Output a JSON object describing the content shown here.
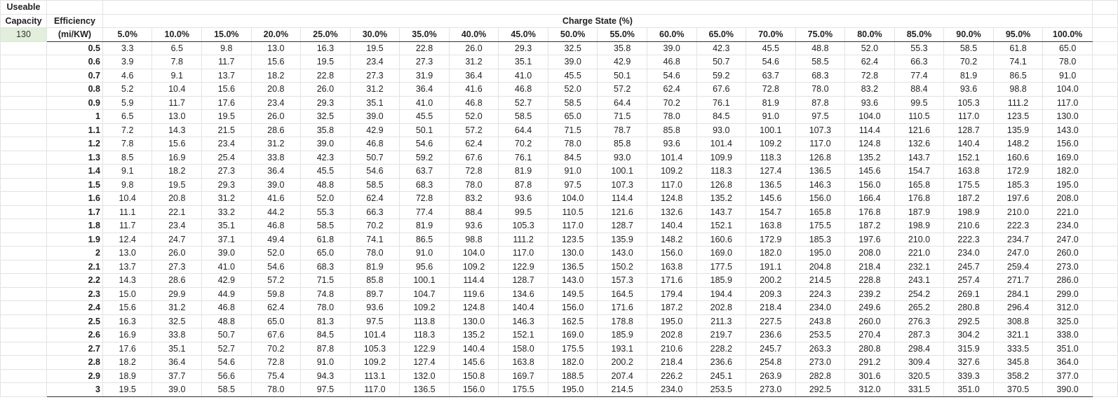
{
  "header": {
    "useable": "Useable",
    "capacity": "Capacity",
    "capacity_value": "130",
    "efficiency": "Efficiency",
    "efficiency_unit": "(mi/KW)",
    "charge_state": "Charge State (%)"
  },
  "table": {
    "columns": [
      "5.0%",
      "10.0%",
      "15.0%",
      "20.0%",
      "25.0%",
      "30.0%",
      "35.0%",
      "40.0%",
      "45.0%",
      "50.0%",
      "55.0%",
      "60.0%",
      "65.0%",
      "70.0%",
      "75.0%",
      "80.0%",
      "85.0%",
      "90.0%",
      "95.0%",
      "100.0%"
    ],
    "rows": [
      {
        "label": "0.5",
        "values": [
          "3.3",
          "6.5",
          "9.8",
          "13.0",
          "16.3",
          "19.5",
          "22.8",
          "26.0",
          "29.3",
          "32.5",
          "35.8",
          "39.0",
          "42.3",
          "45.5",
          "48.8",
          "52.0",
          "55.3",
          "58.5",
          "61.8",
          "65.0"
        ]
      },
      {
        "label": "0.6",
        "values": [
          "3.9",
          "7.8",
          "11.7",
          "15.6",
          "19.5",
          "23.4",
          "27.3",
          "31.2",
          "35.1",
          "39.0",
          "42.9",
          "46.8",
          "50.7",
          "54.6",
          "58.5",
          "62.4",
          "66.3",
          "70.2",
          "74.1",
          "78.0"
        ]
      },
      {
        "label": "0.7",
        "values": [
          "4.6",
          "9.1",
          "13.7",
          "18.2",
          "22.8",
          "27.3",
          "31.9",
          "36.4",
          "41.0",
          "45.5",
          "50.1",
          "54.6",
          "59.2",
          "63.7",
          "68.3",
          "72.8",
          "77.4",
          "81.9",
          "86.5",
          "91.0"
        ]
      },
      {
        "label": "0.8",
        "values": [
          "5.2",
          "10.4",
          "15.6",
          "20.8",
          "26.0",
          "31.2",
          "36.4",
          "41.6",
          "46.8",
          "52.0",
          "57.2",
          "62.4",
          "67.6",
          "72.8",
          "78.0",
          "83.2",
          "88.4",
          "93.6",
          "98.8",
          "104.0"
        ]
      },
      {
        "label": "0.9",
        "values": [
          "5.9",
          "11.7",
          "17.6",
          "23.4",
          "29.3",
          "35.1",
          "41.0",
          "46.8",
          "52.7",
          "58.5",
          "64.4",
          "70.2",
          "76.1",
          "81.9",
          "87.8",
          "93.6",
          "99.5",
          "105.3",
          "111.2",
          "117.0"
        ]
      },
      {
        "label": "1",
        "values": [
          "6.5",
          "13.0",
          "19.5",
          "26.0",
          "32.5",
          "39.0",
          "45.5",
          "52.0",
          "58.5",
          "65.0",
          "71.5",
          "78.0",
          "84.5",
          "91.0",
          "97.5",
          "104.0",
          "110.5",
          "117.0",
          "123.5",
          "130.0"
        ]
      },
      {
        "label": "1.1",
        "values": [
          "7.2",
          "14.3",
          "21.5",
          "28.6",
          "35.8",
          "42.9",
          "50.1",
          "57.2",
          "64.4",
          "71.5",
          "78.7",
          "85.8",
          "93.0",
          "100.1",
          "107.3",
          "114.4",
          "121.6",
          "128.7",
          "135.9",
          "143.0"
        ]
      },
      {
        "label": "1.2",
        "values": [
          "7.8",
          "15.6",
          "23.4",
          "31.2",
          "39.0",
          "46.8",
          "54.6",
          "62.4",
          "70.2",
          "78.0",
          "85.8",
          "93.6",
          "101.4",
          "109.2",
          "117.0",
          "124.8",
          "132.6",
          "140.4",
          "148.2",
          "156.0"
        ]
      },
      {
        "label": "1.3",
        "values": [
          "8.5",
          "16.9",
          "25.4",
          "33.8",
          "42.3",
          "50.7",
          "59.2",
          "67.6",
          "76.1",
          "84.5",
          "93.0",
          "101.4",
          "109.9",
          "118.3",
          "126.8",
          "135.2",
          "143.7",
          "152.1",
          "160.6",
          "169.0"
        ]
      },
      {
        "label": "1.4",
        "values": [
          "9.1",
          "18.2",
          "27.3",
          "36.4",
          "45.5",
          "54.6",
          "63.7",
          "72.8",
          "81.9",
          "91.0",
          "100.1",
          "109.2",
          "118.3",
          "127.4",
          "136.5",
          "145.6",
          "154.7",
          "163.8",
          "172.9",
          "182.0"
        ]
      },
      {
        "label": "1.5",
        "values": [
          "9.8",
          "19.5",
          "29.3",
          "39.0",
          "48.8",
          "58.5",
          "68.3",
          "78.0",
          "87.8",
          "97.5",
          "107.3",
          "117.0",
          "126.8",
          "136.5",
          "146.3",
          "156.0",
          "165.8",
          "175.5",
          "185.3",
          "195.0"
        ]
      },
      {
        "label": "1.6",
        "values": [
          "10.4",
          "20.8",
          "31.2",
          "41.6",
          "52.0",
          "62.4",
          "72.8",
          "83.2",
          "93.6",
          "104.0",
          "114.4",
          "124.8",
          "135.2",
          "145.6",
          "156.0",
          "166.4",
          "176.8",
          "187.2",
          "197.6",
          "208.0"
        ]
      },
      {
        "label": "1.7",
        "values": [
          "11.1",
          "22.1",
          "33.2",
          "44.2",
          "55.3",
          "66.3",
          "77.4",
          "88.4",
          "99.5",
          "110.5",
          "121.6",
          "132.6",
          "143.7",
          "154.7",
          "165.8",
          "176.8",
          "187.9",
          "198.9",
          "210.0",
          "221.0"
        ]
      },
      {
        "label": "1.8",
        "values": [
          "11.7",
          "23.4",
          "35.1",
          "46.8",
          "58.5",
          "70.2",
          "81.9",
          "93.6",
          "105.3",
          "117.0",
          "128.7",
          "140.4",
          "152.1",
          "163.8",
          "175.5",
          "187.2",
          "198.9",
          "210.6",
          "222.3",
          "234.0"
        ]
      },
      {
        "label": "1.9",
        "values": [
          "12.4",
          "24.7",
          "37.1",
          "49.4",
          "61.8",
          "74.1",
          "86.5",
          "98.8",
          "111.2",
          "123.5",
          "135.9",
          "148.2",
          "160.6",
          "172.9",
          "185.3",
          "197.6",
          "210.0",
          "222.3",
          "234.7",
          "247.0"
        ]
      },
      {
        "label": "2",
        "values": [
          "13.0",
          "26.0",
          "39.0",
          "52.0",
          "65.0",
          "78.0",
          "91.0",
          "104.0",
          "117.0",
          "130.0",
          "143.0",
          "156.0",
          "169.0",
          "182.0",
          "195.0",
          "208.0",
          "221.0",
          "234.0",
          "247.0",
          "260.0"
        ]
      },
      {
        "label": "2.1",
        "values": [
          "13.7",
          "27.3",
          "41.0",
          "54.6",
          "68.3",
          "81.9",
          "95.6",
          "109.2",
          "122.9",
          "136.5",
          "150.2",
          "163.8",
          "177.5",
          "191.1",
          "204.8",
          "218.4",
          "232.1",
          "245.7",
          "259.4",
          "273.0"
        ]
      },
      {
        "label": "2.2",
        "values": [
          "14.3",
          "28.6",
          "42.9",
          "57.2",
          "71.5",
          "85.8",
          "100.1",
          "114.4",
          "128.7",
          "143.0",
          "157.3",
          "171.6",
          "185.9",
          "200.2",
          "214.5",
          "228.8",
          "243.1",
          "257.4",
          "271.7",
          "286.0"
        ]
      },
      {
        "label": "2.3",
        "values": [
          "15.0",
          "29.9",
          "44.9",
          "59.8",
          "74.8",
          "89.7",
          "104.7",
          "119.6",
          "134.6",
          "149.5",
          "164.5",
          "179.4",
          "194.4",
          "209.3",
          "224.3",
          "239.2",
          "254.2",
          "269.1",
          "284.1",
          "299.0"
        ]
      },
      {
        "label": "2.4",
        "values": [
          "15.6",
          "31.2",
          "46.8",
          "62.4",
          "78.0",
          "93.6",
          "109.2",
          "124.8",
          "140.4",
          "156.0",
          "171.6",
          "187.2",
          "202.8",
          "218.4",
          "234.0",
          "249.6",
          "265.2",
          "280.8",
          "296.4",
          "312.0"
        ]
      },
      {
        "label": "2.5",
        "values": [
          "16.3",
          "32.5",
          "48.8",
          "65.0",
          "81.3",
          "97.5",
          "113.8",
          "130.0",
          "146.3",
          "162.5",
          "178.8",
          "195.0",
          "211.3",
          "227.5",
          "243.8",
          "260.0",
          "276.3",
          "292.5",
          "308.8",
          "325.0"
        ]
      },
      {
        "label": "2.6",
        "values": [
          "16.9",
          "33.8",
          "50.7",
          "67.6",
          "84.5",
          "101.4",
          "118.3",
          "135.2",
          "152.1",
          "169.0",
          "185.9",
          "202.8",
          "219.7",
          "236.6",
          "253.5",
          "270.4",
          "287.3",
          "304.2",
          "321.1",
          "338.0"
        ]
      },
      {
        "label": "2.7",
        "values": [
          "17.6",
          "35.1",
          "52.7",
          "70.2",
          "87.8",
          "105.3",
          "122.9",
          "140.4",
          "158.0",
          "175.5",
          "193.1",
          "210.6",
          "228.2",
          "245.7",
          "263.3",
          "280.8",
          "298.4",
          "315.9",
          "333.5",
          "351.0"
        ]
      },
      {
        "label": "2.8",
        "values": [
          "18.2",
          "36.4",
          "54.6",
          "72.8",
          "91.0",
          "109.2",
          "127.4",
          "145.6",
          "163.8",
          "182.0",
          "200.2",
          "218.4",
          "236.6",
          "254.8",
          "273.0",
          "291.2",
          "309.4",
          "327.6",
          "345.8",
          "364.0"
        ]
      },
      {
        "label": "2.9",
        "values": [
          "18.9",
          "37.7",
          "56.6",
          "75.4",
          "94.3",
          "113.1",
          "132.0",
          "150.8",
          "169.7",
          "188.5",
          "207.4",
          "226.2",
          "245.1",
          "263.9",
          "282.8",
          "301.6",
          "320.5",
          "339.3",
          "358.2",
          "377.0"
        ]
      },
      {
        "label": "3",
        "values": [
          "19.5",
          "39.0",
          "58.5",
          "78.0",
          "97.5",
          "117.0",
          "136.5",
          "156.0",
          "175.5",
          "195.0",
          "214.5",
          "234.0",
          "253.5",
          "273.0",
          "292.5",
          "312.0",
          "331.5",
          "351.0",
          "370.5",
          "390.0"
        ]
      }
    ]
  }
}
